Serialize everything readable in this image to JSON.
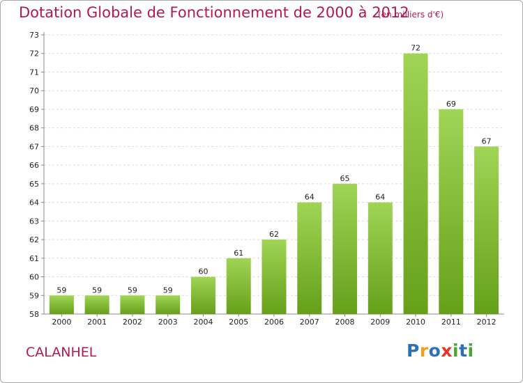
{
  "header": {
    "title": "Dotation Globale de Fonctionnement de 2000 à 2012",
    "unit": "(en milliers d'€)"
  },
  "footer": {
    "town": "CALANHEL",
    "logo": [
      "P",
      "r",
      "o",
      "x",
      "i",
      "t",
      "i"
    ]
  },
  "colors": {
    "title": "#b5174f",
    "bar_light": "#a0d455",
    "bar_dark": "#66a019",
    "logo": [
      "#2f6fb8",
      "#f0a020",
      "#2f6fb8",
      "#e8342a",
      "#4aa535",
      "#2f6fb8",
      "#4aa535"
    ]
  },
  "chart_data": {
    "type": "bar",
    "categories": [
      "2000",
      "2001",
      "2002",
      "2003",
      "2004",
      "2005",
      "2006",
      "2007",
      "2008",
      "2009",
      "2010",
      "2011",
      "2012"
    ],
    "values": [
      59,
      59,
      59,
      59,
      60,
      61,
      62,
      64,
      65,
      64,
      72,
      69,
      67
    ],
    "ylim": [
      58,
      73
    ],
    "yticks": [
      58,
      59,
      60,
      61,
      62,
      63,
      64,
      65,
      66,
      67,
      68,
      69,
      70,
      71,
      72,
      73
    ],
    "grid": true
  }
}
